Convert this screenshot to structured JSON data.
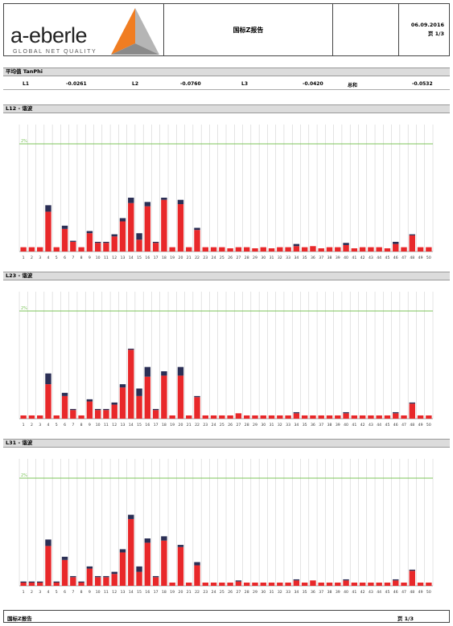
{
  "header": {
    "logo_text": "a-eberle",
    "logo_tagline": "GLOBAL NET QUALITY",
    "title": "国标Z报告",
    "date": "06.09.2016",
    "page": "页 1/3"
  },
  "averages": {
    "section_title": "平均值 TanPhi",
    "items": [
      {
        "label": "L1",
        "value": "-0.0261"
      },
      {
        "label": "L2",
        "value": "-0.0760"
      },
      {
        "label": "L3",
        "value": "-0.0420"
      },
      {
        "label": "总和",
        "value": "-0.0532"
      }
    ]
  },
  "colors": {
    "bar_main": "#e8282a",
    "bar_top": "#2b2f55",
    "limit_line": "#7cc45a",
    "grid": "#c8c8c8",
    "section_bg": "#dcdcdc"
  },
  "chart_data": [
    {
      "type": "bar",
      "title": "L12 - 谐波",
      "categories": [
        "1",
        "2",
        "3",
        "4",
        "5",
        "6",
        "7",
        "8",
        "9",
        "10",
        "11",
        "12",
        "13",
        "14",
        "15",
        "16",
        "17",
        "18",
        "19",
        "20",
        "21",
        "22",
        "23",
        "24",
        "25",
        "26",
        "27",
        "28",
        "29",
        "30",
        "31",
        "32",
        "33",
        "34",
        "35",
        "36",
        "37",
        "38",
        "39",
        "40",
        "41",
        "42",
        "43",
        "44",
        "45",
        "46",
        "47",
        "48",
        "49",
        "50"
      ],
      "limit_label": "2%",
      "limit": 100,
      "ylim": [
        0,
        100
      ],
      "series": [
        {
          "values": [
            4,
            4,
            4,
            37,
            4,
            21,
            9,
            4,
            17,
            8,
            8,
            14,
            28,
            45,
            11,
            42,
            8,
            48,
            4,
            44,
            4,
            20,
            4,
            4,
            4,
            3,
            4,
            4,
            3,
            4,
            3,
            4,
            4,
            5,
            4,
            5,
            3,
            4,
            4,
            6,
            3,
            4,
            4,
            4,
            3,
            7,
            4,
            15,
            4,
            4
          ]
        },
        {
          "values": [
            0,
            0,
            0,
            6,
            0,
            3,
            1,
            0,
            2,
            1,
            1,
            2,
            3,
            5,
            6,
            4,
            1,
            2,
            0,
            4,
            0,
            2,
            0,
            0,
            0,
            0,
            0,
            0,
            0,
            0,
            0,
            0,
            0,
            2,
            0,
            0,
            0,
            0,
            0,
            2,
            0,
            0,
            0,
            0,
            0,
            2,
            0,
            1,
            0,
            0
          ]
        }
      ]
    },
    {
      "type": "bar",
      "title": "L23 - 谐波",
      "categories": [
        "1",
        "2",
        "3",
        "4",
        "5",
        "6",
        "7",
        "8",
        "9",
        "10",
        "11",
        "12",
        "13",
        "14",
        "15",
        "16",
        "17",
        "18",
        "19",
        "20",
        "21",
        "22",
        "23",
        "24",
        "25",
        "26",
        "27",
        "28",
        "29",
        "30",
        "31",
        "32",
        "33",
        "34",
        "35",
        "36",
        "37",
        "38",
        "39",
        "40",
        "41",
        "42",
        "43",
        "44",
        "45",
        "46",
        "47",
        "48",
        "49",
        "50"
      ],
      "limit_label": "2%",
      "limit": 100,
      "ylim": [
        0,
        100
      ],
      "series": [
        {
          "values": [
            3,
            3,
            3,
            32,
            3,
            21,
            8,
            3,
            16,
            8,
            8,
            13,
            29,
            64,
            21,
            39,
            8,
            40,
            3,
            40,
            3,
            20,
            3,
            3,
            3,
            3,
            5,
            3,
            3,
            3,
            3,
            3,
            3,
            5,
            3,
            3,
            3,
            3,
            3,
            5,
            3,
            3,
            3,
            3,
            3,
            5,
            3,
            14,
            3,
            3
          ]
        },
        {
          "values": [
            0,
            0,
            0,
            10,
            0,
            3,
            1,
            0,
            2,
            1,
            1,
            2,
            3,
            1,
            7,
            9,
            1,
            4,
            0,
            8,
            0,
            1,
            0,
            0,
            0,
            0,
            0,
            0,
            0,
            0,
            0,
            0,
            0,
            1,
            0,
            0,
            0,
            0,
            0,
            1,
            0,
            0,
            0,
            0,
            0,
            1,
            0,
            1,
            0,
            0
          ]
        }
      ]
    },
    {
      "type": "bar",
      "title": "L31 - 谐波",
      "categories": [
        "1",
        "2",
        "3",
        "4",
        "5",
        "6",
        "7",
        "8",
        "9",
        "10",
        "11",
        "12",
        "13",
        "14",
        "15",
        "16",
        "17",
        "18",
        "19",
        "20",
        "21",
        "22",
        "23",
        "24",
        "25",
        "26",
        "27",
        "28",
        "29",
        "30",
        "31",
        "32",
        "33",
        "34",
        "35",
        "36",
        "37",
        "38",
        "39",
        "40",
        "41",
        "42",
        "43",
        "44",
        "45",
        "46",
        "47",
        "48",
        "49",
        "50"
      ],
      "limit_label": "2%",
      "limit": 100,
      "ylim": [
        0,
        100
      ],
      "series": [
        {
          "values": [
            3,
            3,
            3,
            37,
            3,
            24,
            8,
            3,
            16,
            8,
            8,
            11,
            31,
            62,
            13,
            40,
            8,
            42,
            3,
            36,
            3,
            19,
            3,
            3,
            3,
            3,
            4,
            3,
            3,
            3,
            3,
            3,
            3,
            5,
            3,
            5,
            3,
            3,
            3,
            5,
            3,
            3,
            3,
            3,
            3,
            5,
            3,
            14,
            3,
            3
          ]
        },
        {
          "values": [
            1,
            1,
            1,
            6,
            1,
            3,
            1,
            1,
            2,
            1,
            1,
            2,
            3,
            4,
            5,
            4,
            1,
            4,
            0,
            2,
            0,
            3,
            0,
            0,
            0,
            0,
            1,
            0,
            0,
            0,
            0,
            0,
            0,
            1,
            0,
            0,
            0,
            0,
            0,
            1,
            0,
            0,
            0,
            0,
            0,
            1,
            0,
            1,
            0,
            0
          ]
        }
      ]
    }
  ],
  "footer": {
    "left": "国标Z报告",
    "right": "页 1/3"
  }
}
